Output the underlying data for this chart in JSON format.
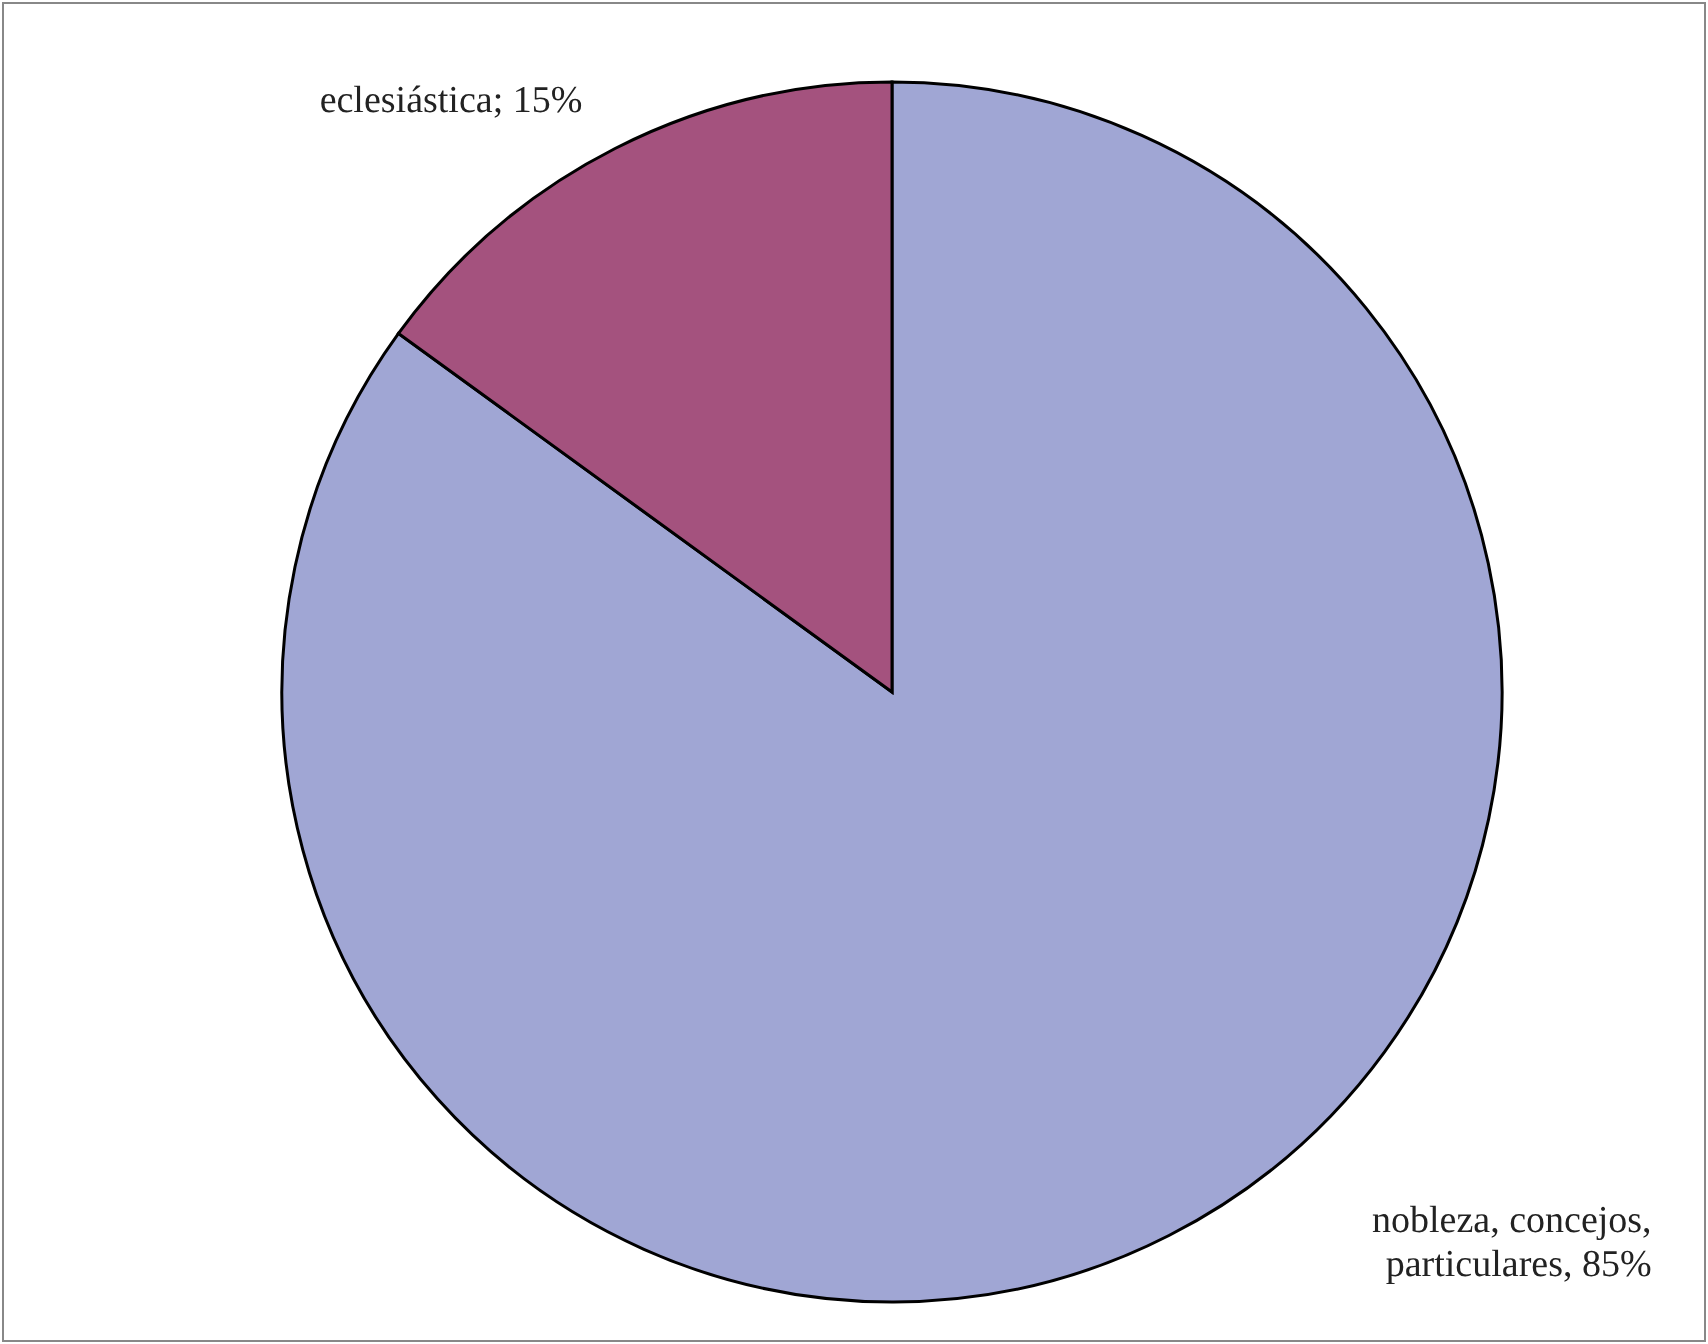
{
  "chart_data": {
    "type": "pie",
    "categories": [
      "nobleza, concejos, particulares",
      "eclesiástica"
    ],
    "values": [
      85,
      15
    ],
    "value_labels": [
      "85%",
      "15%"
    ],
    "colors": [
      "#a0a6d4",
      "#a4527e"
    ]
  }
}
